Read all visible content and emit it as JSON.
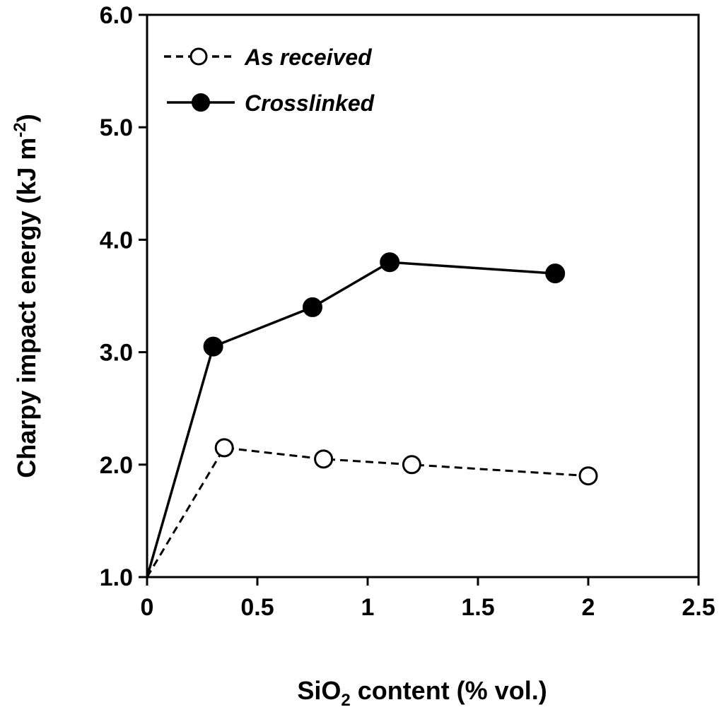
{
  "chart_data": {
    "type": "line",
    "title": "",
    "xlabel": {
      "pre": "SiO",
      "sub": "2",
      "post": " content (% vol.)"
    },
    "ylabel": {
      "pre": "Charpy impact energy (kJ m",
      "sup": "-2",
      "post": ")"
    },
    "xlim": [
      0,
      2.5
    ],
    "ylim": [
      1.0,
      6.0
    ],
    "xticks": [
      0,
      0.5,
      1,
      1.5,
      2,
      2.5
    ],
    "xtick_labels": [
      "0",
      "0.5",
      "1",
      "1.5",
      "2",
      "2.5"
    ],
    "yticks": [
      1.0,
      2.0,
      3.0,
      4.0,
      5.0,
      6.0
    ],
    "ytick_labels": [
      "1.0",
      "2.0",
      "3.0",
      "4.0",
      "5.0",
      "6.0"
    ],
    "grid": false,
    "legend_position": "top-left",
    "series": [
      {
        "name": "As received",
        "style": "dashed",
        "marker": "open-circle",
        "x": [
          0,
          0.35,
          0.8,
          1.2,
          2.0
        ],
        "y": [
          1.0,
          2.15,
          2.05,
          2.0,
          1.9
        ]
      },
      {
        "name": "Crosslinked",
        "style": "solid",
        "marker": "filled-circle",
        "x": [
          0,
          0.3,
          0.75,
          1.1,
          1.85
        ],
        "y": [
          1.0,
          3.05,
          3.4,
          3.8,
          3.7
        ]
      }
    ]
  }
}
